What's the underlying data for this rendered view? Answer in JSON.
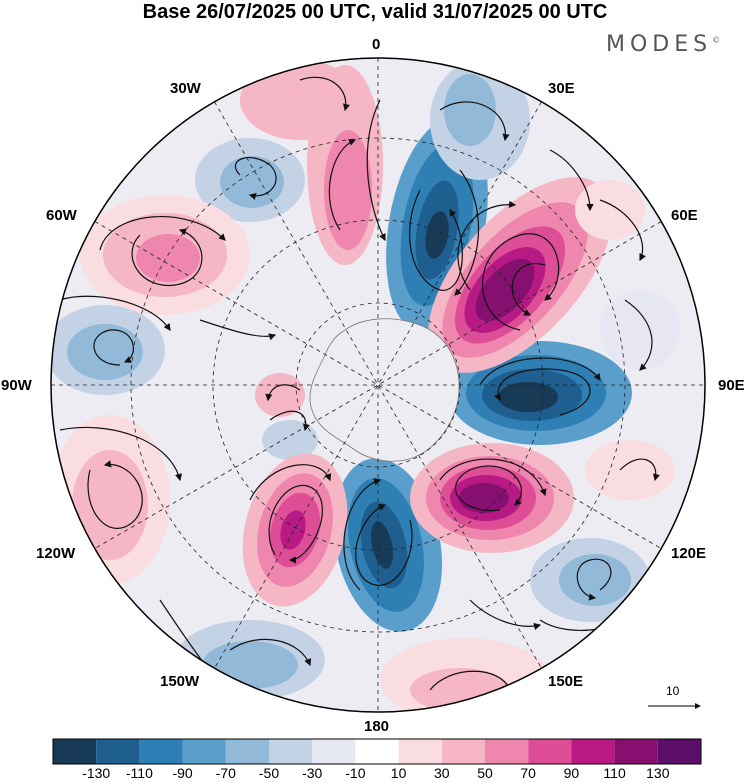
{
  "title": "Base 26/07/2025 00 UTC, valid 31/07/2025 00 UTC",
  "brand": "MODES",
  "brand_mark": "©",
  "longitude_labels": {
    "lon_0": "0",
    "lon_30e": "30E",
    "lon_60e": "60E",
    "lon_90e": "90E",
    "lon_120e": "120E",
    "lon_150e": "150E",
    "lon_180": "180",
    "lon_150w": "150W",
    "lon_120w": "120W",
    "lon_90w": "90W",
    "lon_60w": "60W",
    "lon_30w": "30W"
  },
  "reference_vector": "10",
  "colorbar": {
    "ticks": [
      "-130",
      "-110",
      "-90",
      "-70",
      "-50",
      "-30",
      "-10",
      "10",
      "30",
      "50",
      "70",
      "90",
      "110",
      "130"
    ],
    "colors": [
      "#173a57",
      "#1e5f8f",
      "#2e7fb4",
      "#5a9fcc",
      "#93b9d8",
      "#c4d2e6",
      "#e6e7f2",
      "#ffffff",
      "#fadde0",
      "#f5b7c5",
      "#ee86ad",
      "#de4e97",
      "#b81a85",
      "#86106f",
      "#5a1068"
    ]
  },
  "icon_names": [
    "polar-map-icon",
    "reference-arrow-icon"
  ]
}
